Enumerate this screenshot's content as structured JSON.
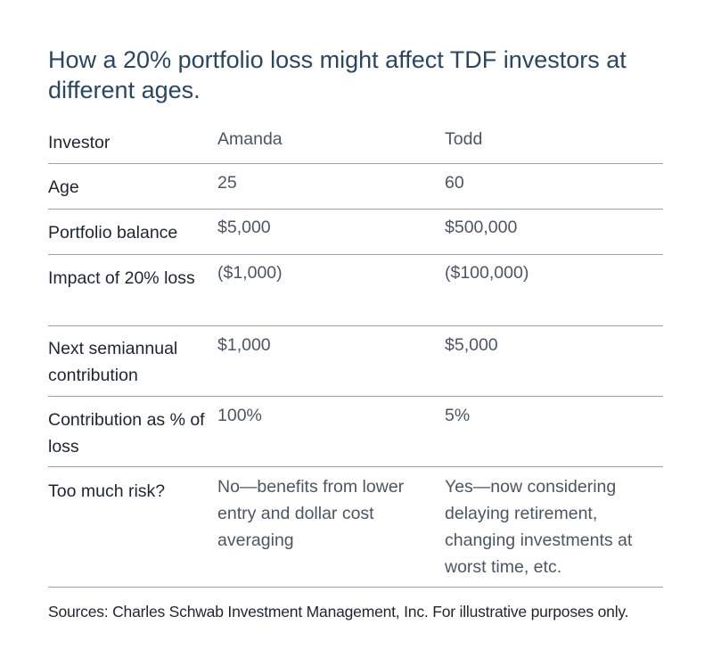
{
  "title": "How a 20% portfolio loss might affect TDF investors at different ages.",
  "table": {
    "rows": [
      {
        "label": "Investor",
        "amanda": "Amanda",
        "todd": "Todd"
      },
      {
        "label": "Age",
        "amanda": "25",
        "todd": "60"
      },
      {
        "label": "Portfolio balance",
        "amanda": "$5,000",
        "todd": "$500,000"
      },
      {
        "label": "Impact of 20% loss",
        "amanda": "($1,000)",
        "todd": "($100,000)"
      },
      {
        "label": "Next semiannual contribution",
        "amanda": "$1,000",
        "todd": "$5,000"
      },
      {
        "label": "Contribution as % of loss",
        "amanda": "100%",
        "todd": "5%"
      },
      {
        "label": "Too much risk?",
        "amanda": "No—benefits from lower entry and dollar cost averaging",
        "todd": "Yes—now considering delaying retirement, changing investments at worst time, etc."
      }
    ]
  },
  "source": "Sources: Charles Schwab Investment Management, Inc. For illustrative purposes only."
}
